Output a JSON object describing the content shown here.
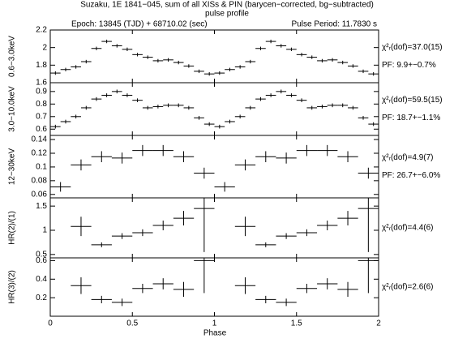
{
  "figure": {
    "title": "Suzaku, 1E 1841−045, sum of all XISs & PIN (barycen−corrected, bg−subtracted)",
    "subtitle": "pulse profile",
    "header_left": "Epoch: 13845 (TJD) + 68710.02 (sec)",
    "header_right": "Pulse Period: 11.7830 s",
    "xlabel": "Phase",
    "xlim": [
      0,
      2
    ],
    "xticks": [
      0,
      0.5,
      1,
      1.5,
      2
    ],
    "color": "#000000"
  },
  "chart_data": [
    {
      "type": "errorbar",
      "ylabel": "0.6−3.0keV",
      "ylim": [
        1.6,
        2.2
      ],
      "yticks": [
        1.6,
        1.8,
        2,
        2.2
      ],
      "xerr": 0.03125,
      "x": [
        0.03125,
        0.09375,
        0.15625,
        0.21875,
        0.28125,
        0.34375,
        0.40625,
        0.46875,
        0.53125,
        0.59375,
        0.65625,
        0.71875,
        0.78125,
        0.84375,
        0.90625,
        0.96875,
        1.03125,
        1.09375,
        1.15625,
        1.21875,
        1.28125,
        1.34375,
        1.40625,
        1.46875,
        1.53125,
        1.59375,
        1.65625,
        1.71875,
        1.78125,
        1.84375,
        1.90625,
        1.96875
      ],
      "values": [
        1.71,
        1.75,
        1.78,
        1.84,
        1.99,
        2.07,
        2.02,
        1.98,
        1.92,
        1.89,
        1.85,
        1.86,
        1.83,
        1.79,
        1.73,
        1.7,
        1.71,
        1.75,
        1.78,
        1.84,
        1.99,
        2.07,
        2.02,
        1.98,
        1.92,
        1.89,
        1.85,
        1.86,
        1.83,
        1.79,
        1.73,
        1.7
      ],
      "errors": [
        0.02,
        0.02,
        0.02,
        0.02,
        0.02,
        0.02,
        0.02,
        0.02,
        0.02,
        0.02,
        0.02,
        0.02,
        0.02,
        0.02,
        0.02,
        0.02,
        0.02,
        0.02,
        0.02,
        0.02,
        0.02,
        0.02,
        0.02,
        0.02,
        0.02,
        0.02,
        0.02,
        0.02,
        0.02,
        0.02,
        0.02,
        0.02
      ],
      "annotations": [
        "χ²ᵣ(dof)=37.0(15)",
        "PF: 9.9+−0.7%"
      ]
    },
    {
      "type": "errorbar",
      "ylabel": "3.0−10.0keV",
      "ylim": [
        0.55,
        0.97
      ],
      "yticks": [
        0.6,
        0.7,
        0.8,
        0.9
      ],
      "xerr": 0.03125,
      "x": [
        0.03125,
        0.09375,
        0.15625,
        0.21875,
        0.28125,
        0.34375,
        0.40625,
        0.46875,
        0.53125,
        0.59375,
        0.65625,
        0.71875,
        0.78125,
        0.84375,
        0.90625,
        0.96875,
        1.03125,
        1.09375,
        1.15625,
        1.21875,
        1.28125,
        1.34375,
        1.40625,
        1.46875,
        1.53125,
        1.59375,
        1.65625,
        1.71875,
        1.78125,
        1.84375,
        1.90625,
        1.96875
      ],
      "values": [
        0.62,
        0.66,
        0.7,
        0.77,
        0.84,
        0.87,
        0.9,
        0.87,
        0.83,
        0.77,
        0.78,
        0.79,
        0.79,
        0.77,
        0.69,
        0.64,
        0.62,
        0.66,
        0.7,
        0.77,
        0.84,
        0.87,
        0.9,
        0.87,
        0.83,
        0.77,
        0.78,
        0.79,
        0.79,
        0.77,
        0.69,
        0.64
      ],
      "errors": [
        0.015,
        0.015,
        0.015,
        0.015,
        0.015,
        0.015,
        0.015,
        0.015,
        0.015,
        0.015,
        0.015,
        0.015,
        0.015,
        0.015,
        0.015,
        0.015,
        0.015,
        0.015,
        0.015,
        0.015,
        0.015,
        0.015,
        0.015,
        0.015,
        0.015,
        0.015,
        0.015,
        0.015,
        0.015,
        0.015,
        0.015,
        0.015
      ],
      "annotations": [
        "χ²ᵣ(dof)=59.5(15)",
        "PF: 18.7+−1.1%"
      ]
    },
    {
      "type": "errorbar",
      "ylabel": "12−30keV",
      "ylim": [
        0.055,
        0.146
      ],
      "yticks": [
        0.06,
        0.08,
        0.1,
        0.12,
        0.14
      ],
      "xerr": 0.0625,
      "x": [
        0.0625,
        0.1875,
        0.3125,
        0.4375,
        0.5625,
        0.6875,
        0.8125,
        0.9375,
        1.0625,
        1.1875,
        1.3125,
        1.4375,
        1.5625,
        1.6875,
        1.8125,
        1.9375
      ],
      "values": [
        0.071,
        0.103,
        0.115,
        0.113,
        0.124,
        0.124,
        0.115,
        0.091,
        0.071,
        0.103,
        0.115,
        0.113,
        0.124,
        0.124,
        0.115,
        0.091
      ],
      "errors": [
        0.007,
        0.008,
        0.008,
        0.008,
        0.008,
        0.008,
        0.008,
        0.008,
        0.007,
        0.008,
        0.008,
        0.008,
        0.008,
        0.008,
        0.008,
        0.008
      ],
      "annotations": [
        "χ²ᵣ(dof)=4.9(7)",
        "PF: 26.7+−6.0%"
      ]
    },
    {
      "type": "errorbar",
      "ylabel": "HR(2)/(1)",
      "ylim": [
        0.43,
        1.67
      ],
      "yticks": [
        0.5,
        1,
        1.5
      ],
      "xerr": 0.0625,
      "x": [
        0.0625,
        0.1875,
        0.3125,
        0.4375,
        0.5625,
        0.6875,
        0.8125,
        0.9375,
        1.0625,
        1.1875,
        1.3125,
        1.4375,
        1.5625,
        1.6875,
        1.8125,
        1.9375
      ],
      "values": [
        null,
        1.08,
        0.7,
        0.88,
        0.95,
        1.1,
        1.25,
        1.45,
        null,
        1.08,
        0.7,
        0.88,
        0.95,
        1.1,
        1.25,
        1.45
      ],
      "errors": [
        null,
        0.2,
        0.05,
        0.06,
        0.07,
        0.1,
        0.15,
        0.9,
        null,
        0.2,
        0.05,
        0.06,
        0.07,
        0.1,
        0.15,
        0.9
      ],
      "annotations": [
        "χ²ᵣ(dof)=4.4(6)"
      ]
    },
    {
      "type": "errorbar",
      "ylabel": "HR(3)/(2)",
      "ylim": [
        0,
        0.63
      ],
      "yticks": [
        0.2,
        0.4,
        0.6
      ],
      "xerr": 0.0625,
      "x": [
        0.0625,
        0.1875,
        0.3125,
        0.4375,
        0.5625,
        0.6875,
        0.8125,
        0.9375,
        1.0625,
        1.1875,
        1.3125,
        1.4375,
        1.5625,
        1.6875,
        1.8125,
        1.9375
      ],
      "values": [
        null,
        0.33,
        0.18,
        0.15,
        0.3,
        0.35,
        0.29,
        0.6,
        null,
        0.33,
        0.18,
        0.15,
        0.3,
        0.35,
        0.29,
        0.6
      ],
      "errors": [
        null,
        0.09,
        0.04,
        0.04,
        0.05,
        0.06,
        0.08,
        0.35,
        null,
        0.09,
        0.04,
        0.04,
        0.05,
        0.06,
        0.08,
        0.35
      ],
      "annotations": [
        "χ²ᵣ(dof)=2.6(6)"
      ]
    }
  ]
}
